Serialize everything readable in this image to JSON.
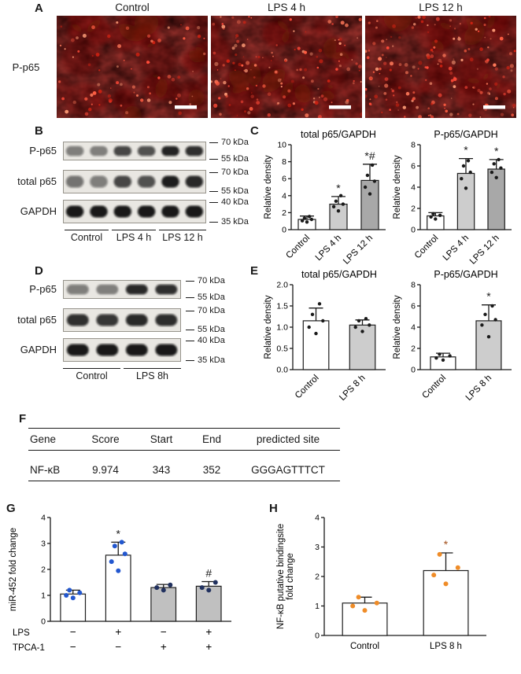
{
  "figure": {
    "panels": {
      "a": {
        "label": "A",
        "row_label": "P-p65",
        "columns": [
          "Control",
          "LPS 4 h",
          "LPS 12 h"
        ]
      },
      "b": {
        "label": "B",
        "rows": [
          {
            "name": "P-p65",
            "markers": [
              "70 kDa",
              "55 kDa"
            ],
            "bands": [
              0.5,
              0.45,
              0.75,
              0.7,
              0.9,
              0.85
            ]
          },
          {
            "name": "total p65",
            "markers": [
              "70 kDa",
              "55 kDa"
            ],
            "bands": [
              0.55,
              0.5,
              0.75,
              0.7,
              0.93,
              0.88
            ]
          },
          {
            "name": "GAPDH",
            "markers": [
              "40 kDa",
              "35 kDa"
            ],
            "bands": [
              0.95,
              0.95,
              0.95,
              0.95,
              0.95,
              0.95
            ]
          }
        ],
        "lanes": [
          "Control",
          "LPS 4 h",
          "LPS 12 h"
        ]
      },
      "c": {
        "label": "C"
      },
      "d": {
        "label": "D",
        "rows": [
          {
            "name": "P-p65",
            "markers": [
              "70 kDa",
              "55 kDa"
            ],
            "bands": [
              0.5,
              0.45,
              0.88,
              0.85
            ]
          },
          {
            "name": "total p65",
            "markers": [
              "70 kDa",
              "55 kDa"
            ],
            "bands": [
              0.85,
              0.82,
              0.88,
              0.86
            ]
          },
          {
            "name": "GAPDH",
            "markers": [
              "40 kDa",
              "35 kDa"
            ],
            "bands": [
              0.95,
              0.95,
              0.95,
              0.95
            ]
          }
        ],
        "lanes": [
          "Control",
          "LPS 8h"
        ]
      },
      "e": {
        "label": "E"
      },
      "f": {
        "label": "F",
        "table": {
          "headers": [
            "Gene",
            "Score",
            "Start",
            "End",
            "predicted site"
          ],
          "rows": [
            [
              "NF-κB",
              "9.974",
              "343",
              "352",
              "GGGAGTTTCT"
            ]
          ]
        }
      },
      "g": {
        "label": "G"
      },
      "h": {
        "label": "H"
      }
    }
  },
  "chart_data": [
    {
      "id": "total-p65-gapdh-timecourse",
      "type": "bar",
      "title": "total p65/GAPDH",
      "ylabel": "Relative density",
      "ylim": [
        0,
        10
      ],
      "yticks": [
        0,
        2,
        4,
        6,
        8,
        10
      ],
      "categories": [
        "Control",
        "LPS 4 h",
        "LPS 12 h"
      ],
      "values": [
        1.2,
        3.0,
        5.8
      ],
      "errors": [
        0.4,
        0.9,
        1.9
      ],
      "points": [
        [
          0.9,
          1.05,
          1.2,
          1.35,
          1.55
        ],
        [
          2.2,
          2.7,
          3.0,
          3.35,
          4.0
        ],
        [
          4.2,
          5.0,
          5.7,
          6.4,
          7.6
        ]
      ],
      "annotations": [
        "",
        "*",
        "*#"
      ],
      "bar_colors": [
        "#ffffff",
        "#cdcdcd",
        "#a8a8a8"
      ],
      "dot_color": "#1a1a1a",
      "xlabel_rotate": true
    },
    {
      "id": "p-p65-gapdh-timecourse",
      "type": "bar",
      "title": "P-p65/GAPDH",
      "ylabel": "Relative density",
      "ylim": [
        0,
        8
      ],
      "yticks": [
        0,
        2,
        4,
        6,
        8
      ],
      "categories": [
        "Control",
        "LPS 4 h",
        "LPS 12 h"
      ],
      "values": [
        1.3,
        5.3,
        5.7
      ],
      "errors": [
        0.3,
        1.4,
        0.9
      ],
      "points": [
        [
          1.0,
          1.2,
          1.35,
          1.5
        ],
        [
          3.9,
          4.8,
          5.4,
          6.0,
          6.5
        ],
        [
          4.9,
          5.4,
          5.8,
          6.2,
          6.6
        ]
      ],
      "annotations": [
        "",
        "*",
        "*"
      ],
      "bar_colors": [
        "#ffffff",
        "#cdcdcd",
        "#a8a8a8"
      ],
      "dot_color": "#1a1a1a",
      "xlabel_rotate": true
    },
    {
      "id": "total-p65-gapdh-8h",
      "type": "bar",
      "title": "total p65/GAPDH",
      "ylabel": "Relative density",
      "ylim": [
        0,
        2
      ],
      "yticks": [
        0,
        0.5,
        1,
        1.5,
        2
      ],
      "ytick_labels": [
        "0.0",
        "0.5",
        "1.0",
        "1.5",
        "2.0"
      ],
      "categories": [
        "Control",
        "LPS 8 h"
      ],
      "values": [
        1.15,
        1.05
      ],
      "errors": [
        0.3,
        0.12
      ],
      "points": [
        [
          0.85,
          1.0,
          1.15,
          1.3,
          1.55
        ],
        [
          0.9,
          1.0,
          1.05,
          1.15,
          1.2
        ]
      ],
      "annotations": [
        "",
        ""
      ],
      "bar_colors": [
        "#ffffff",
        "#cdcdcd"
      ],
      "dot_color": "#1a1a1a",
      "xlabel_rotate": true
    },
    {
      "id": "p-p65-gapdh-8h",
      "type": "bar",
      "title": "P-p65/GAPDH",
      "ylabel": "Relative density",
      "ylim": [
        0,
        8
      ],
      "yticks": [
        0,
        2,
        4,
        6,
        8
      ],
      "categories": [
        "Control",
        "LPS 8 h"
      ],
      "values": [
        1.2,
        4.6
      ],
      "errors": [
        0.35,
        1.5
      ],
      "points": [
        [
          0.9,
          1.1,
          1.3,
          1.45
        ],
        [
          3.1,
          4.2,
          4.7,
          5.2,
          6.0
        ]
      ],
      "annotations": [
        "",
        "*"
      ],
      "bar_colors": [
        "#ffffff",
        "#cdcdcd"
      ],
      "dot_color": "#1a1a1a",
      "xlabel_rotate": true
    },
    {
      "id": "mir-452-fold-change",
      "type": "bar",
      "title": "",
      "ylabel": "miR-452 fold change",
      "ylim": [
        0,
        4
      ],
      "yticks": [
        0,
        1,
        2,
        3,
        4
      ],
      "categories": [
        "LPS − / TPCA-1 −",
        "LPS + / TPCA-1 −",
        "LPS − / TPCA-1 +",
        "LPS + / TPCA-1 +"
      ],
      "values": [
        1.05,
        2.55,
        1.3,
        1.35
      ],
      "errors": [
        0.15,
        0.5,
        0.12,
        0.18
      ],
      "points": [
        [
          0.9,
          1.0,
          1.1,
          1.2
        ],
        [
          1.95,
          2.3,
          2.6,
          2.9,
          3.05
        ],
        [
          1.2,
          1.3,
          1.4
        ],
        [
          1.2,
          1.3,
          1.5
        ]
      ],
      "annotations": [
        "",
        "*",
        "",
        "#"
      ],
      "bar_colors": [
        "#ffffff",
        "#ffffff",
        "#c0c0c0",
        "#c0c0c0"
      ],
      "dot_color": [
        "#2257cf",
        "#2257cf",
        "#21315f",
        "#21315f"
      ],
      "dot_r": 3,
      "sign_rows": [
        {
          "label": "LPS",
          "signs": [
            "−",
            "+",
            "−",
            "+"
          ]
        },
        {
          "label": "TPCA-1",
          "signs": [
            "−",
            "−",
            "+",
            "+"
          ]
        }
      ]
    },
    {
      "id": "nfkb-binding-site-fold-change",
      "type": "bar",
      "title": "",
      "ylabel": [
        "NF-κB putative bindingsite",
        "fold change"
      ],
      "ylim": [
        0,
        4
      ],
      "yticks": [
        0,
        1,
        2,
        3,
        4
      ],
      "categories": [
        "Control",
        "LPS 8 h"
      ],
      "values": [
        1.1,
        2.2
      ],
      "errors": [
        0.2,
        0.6
      ],
      "points": [
        [
          0.85,
          1.0,
          1.1,
          1.3
        ],
        [
          1.75,
          2.05,
          2.3,
          2.75
        ]
      ],
      "annotations": [
        "",
        "*"
      ],
      "annot_color": "#a3511d",
      "bar_colors": [
        "#ffffff",
        "#ffffff"
      ],
      "dot_color": "#ef8c28",
      "dot_r": 3,
      "xlabel_rotate": false
    }
  ]
}
